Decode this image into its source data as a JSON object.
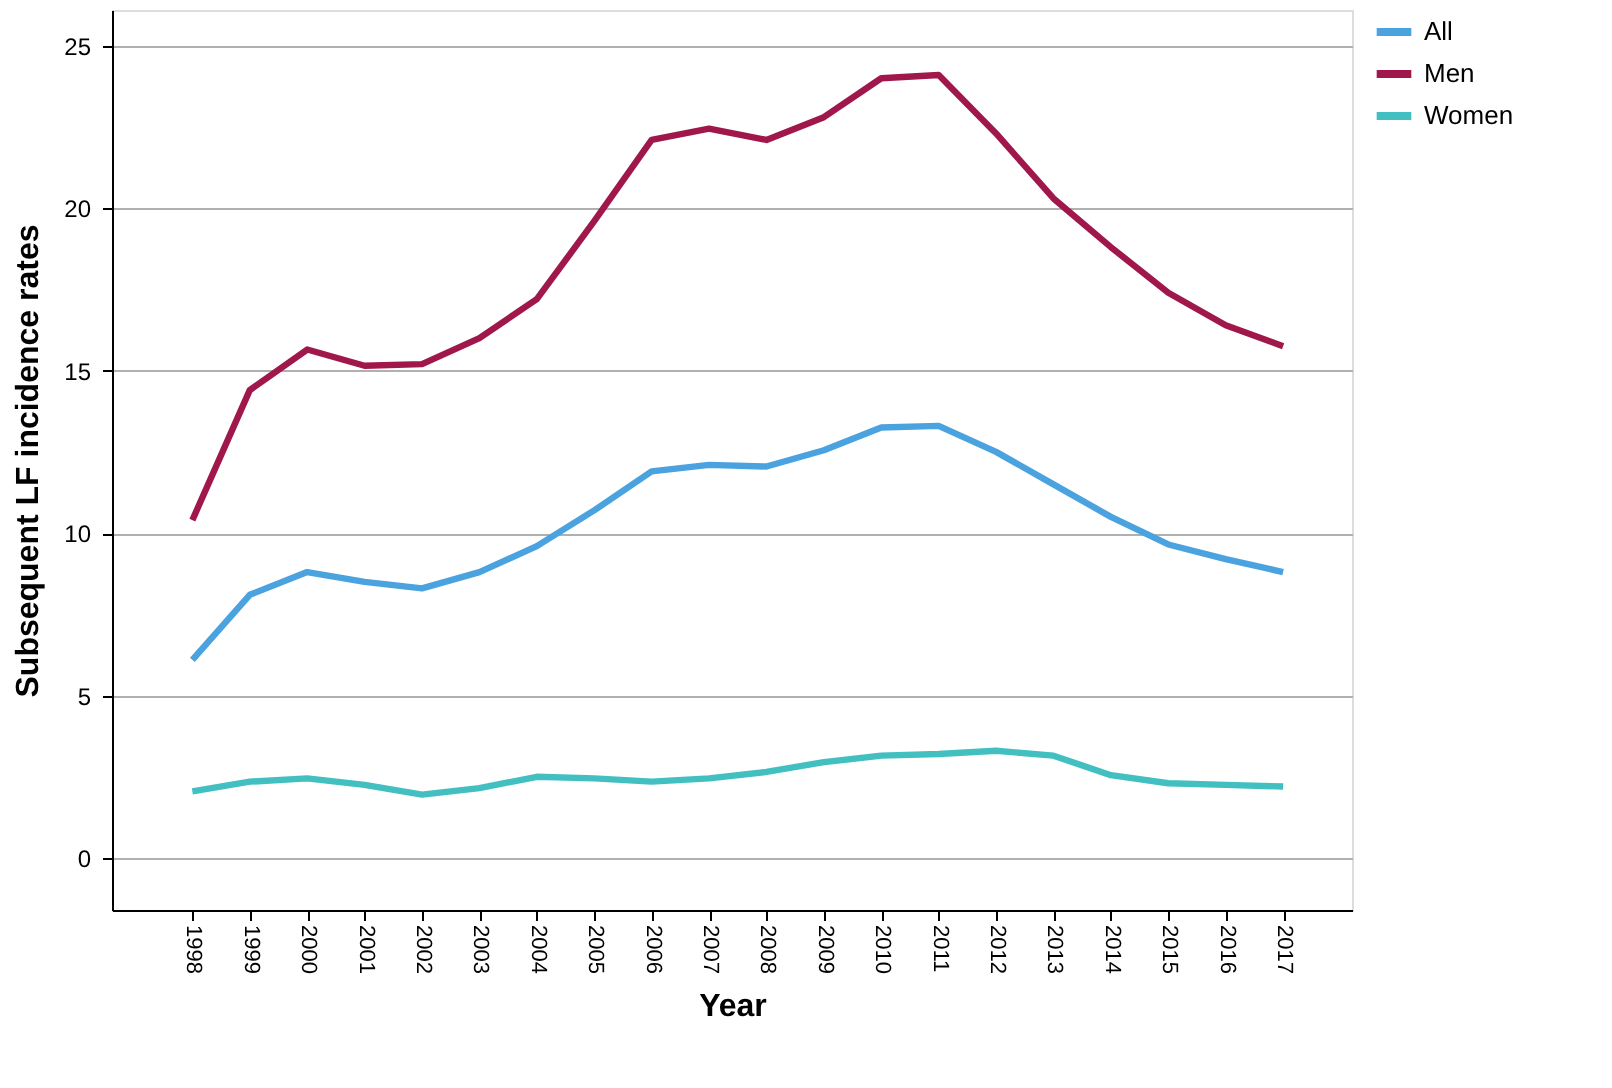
{
  "chart_data": {
    "type": "line",
    "xlabel": "Year",
    "ylabel": "Subsequent LF incidence rates",
    "categories": [
      "1998",
      "1999",
      "2000",
      "2001",
      "2002",
      "2003",
      "2004",
      "2005",
      "2006",
      "2007",
      "2008",
      "2009",
      "2010",
      "2011",
      "2012",
      "2013",
      "2014",
      "2015",
      "2016",
      "2017"
    ],
    "series": [
      {
        "name": "All",
        "color": "#4aa3df",
        "values": [
          6.1,
          8.1,
          8.8,
          8.5,
          8.3,
          8.8,
          9.6,
          10.7,
          11.9,
          12.1,
          12.05,
          12.55,
          13.25,
          13.3,
          12.5,
          11.5,
          10.5,
          9.65,
          9.2,
          8.8
        ]
      },
      {
        "name": "Men",
        "color": "#a0174b",
        "values": [
          10.4,
          14.4,
          15.65,
          15.15,
          15.2,
          16.0,
          17.2,
          19.6,
          22.1,
          22.45,
          22.1,
          22.8,
          24.0,
          24.1,
          22.3,
          20.3,
          18.8,
          17.4,
          16.4,
          15.75
        ]
      },
      {
        "name": "Women",
        "color": "#42bfc1",
        "values": [
          2.05,
          2.35,
          2.45,
          2.25,
          1.95,
          2.15,
          2.5,
          2.45,
          2.35,
          2.45,
          2.65,
          2.95,
          3.15,
          3.2,
          3.3,
          3.15,
          2.55,
          2.3,
          2.25,
          2.2
        ]
      }
    ],
    "ylim": [
      -1.6,
      26.1
    ],
    "yticks": [
      0,
      5,
      10,
      15,
      20,
      25
    ],
    "grid": "y",
    "legend": "top right",
    "marker": "none",
    "line_style": "solid"
  }
}
